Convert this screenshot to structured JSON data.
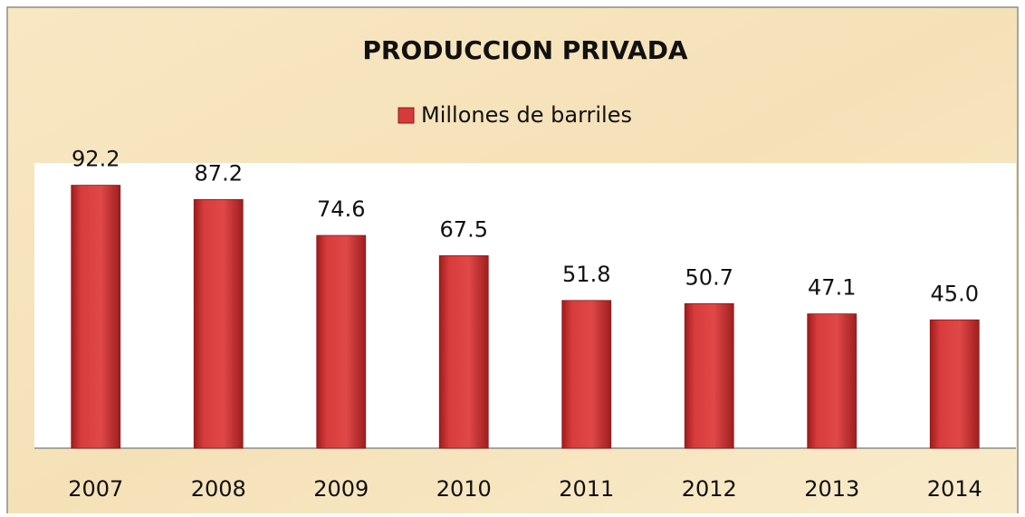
{
  "chart_data": {
    "type": "bar",
    "title": "PRODUCCION PRIVADA",
    "series": [
      {
        "name": "Millones de barriles",
        "color": "#d63a3a",
        "values": [
          92.2,
          87.2,
          74.6,
          67.5,
          51.8,
          50.7,
          47.1,
          45.0
        ],
        "value_labels": [
          "92.2",
          "87.2",
          "74.6",
          "67.5",
          "51.8",
          "50.7",
          "47.1",
          "45.0"
        ]
      }
    ],
    "categories": [
      "2007",
      "2008",
      "2009",
      "2010",
      "2011",
      "2012",
      "2013",
      "2014"
    ],
    "ylim": [
      0,
      100
    ],
    "legend": "top"
  }
}
